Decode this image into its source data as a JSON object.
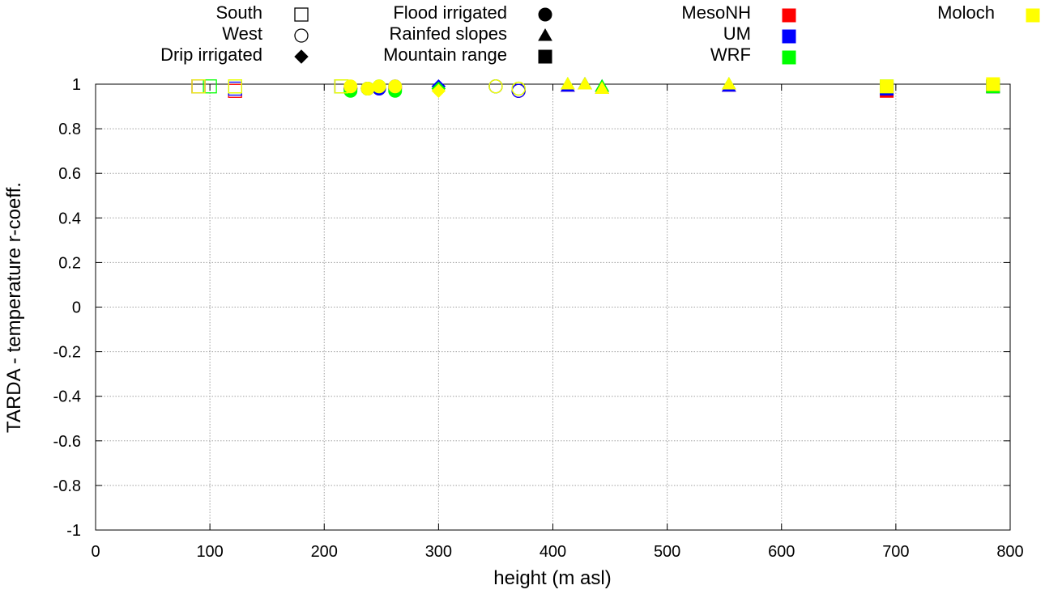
{
  "chart_data": {
    "type": "scatter",
    "title": "",
    "xlabel": "height (m asl)",
    "ylabel": "TARDA - temperature r-coeff.",
    "xlim": [
      0,
      800
    ],
    "ylim": [
      -1,
      1
    ],
    "xticks": [
      0,
      100,
      200,
      300,
      400,
      500,
      600,
      700,
      800
    ],
    "yticks": [
      1,
      0.8,
      0.6,
      0.4,
      0.2,
      0,
      -0.2,
      -0.4,
      -0.6,
      -0.8,
      -1
    ],
    "grid": true,
    "legend_shapes": [
      {
        "label": "South",
        "marker": "square-open"
      },
      {
        "label": "West",
        "marker": "circle-open"
      },
      {
        "label": "Drip irrigated",
        "marker": "diamond"
      },
      {
        "label": "Flood irrigated",
        "marker": "circle"
      },
      {
        "label": "Rainfed slopes",
        "marker": "triangle"
      },
      {
        "label": "Mountain range",
        "marker": "square"
      }
    ],
    "legend_models": [
      {
        "label": "MesoNH",
        "color": "#ff0000"
      },
      {
        "label": "UM",
        "color": "#0000ff"
      },
      {
        "label": "WRF",
        "color": "#00ff00"
      },
      {
        "label": "Moloch",
        "color": "#ffff00"
      }
    ],
    "series": [
      {
        "name": "MesoNH",
        "color": "#ff0000",
        "points": [
          {
            "x": 90,
            "y": 0.99,
            "marker": "square-open"
          },
          {
            "x": 122,
            "y": 0.97,
            "marker": "square-open"
          },
          {
            "x": 215,
            "y": 0.99,
            "marker": "square-open"
          },
          {
            "x": 223,
            "y": 0.98,
            "marker": "circle"
          },
          {
            "x": 238,
            "y": 0.98,
            "marker": "circle"
          },
          {
            "x": 248,
            "y": 0.98,
            "marker": "circle"
          },
          {
            "x": 262,
            "y": 0.98,
            "marker": "circle"
          },
          {
            "x": 300,
            "y": 0.98,
            "marker": "diamond"
          },
          {
            "x": 350,
            "y": 0.99,
            "marker": "circle-open"
          },
          {
            "x": 370,
            "y": 0.97,
            "marker": "circle-open"
          },
          {
            "x": 413,
            "y": 0.99,
            "marker": "triangle"
          },
          {
            "x": 428,
            "y": 1.0,
            "marker": "triangle"
          },
          {
            "x": 443,
            "y": 0.98,
            "marker": "triangle"
          },
          {
            "x": 554,
            "y": 0.99,
            "marker": "triangle"
          },
          {
            "x": 692,
            "y": 0.97,
            "marker": "square"
          },
          {
            "x": 785,
            "y": 0.99,
            "marker": "square"
          }
        ]
      },
      {
        "name": "UM",
        "color": "#0000ff",
        "points": [
          {
            "x": 90,
            "y": 0.99,
            "marker": "square-open"
          },
          {
            "x": 122,
            "y": 0.98,
            "marker": "square-open"
          },
          {
            "x": 215,
            "y": 0.99,
            "marker": "square-open"
          },
          {
            "x": 223,
            "y": 0.98,
            "marker": "circle"
          },
          {
            "x": 238,
            "y": 0.98,
            "marker": "circle"
          },
          {
            "x": 248,
            "y": 0.98,
            "marker": "circle"
          },
          {
            "x": 262,
            "y": 0.99,
            "marker": "circle"
          },
          {
            "x": 300,
            "y": 0.99,
            "marker": "diamond"
          },
          {
            "x": 350,
            "y": 0.99,
            "marker": "circle-open"
          },
          {
            "x": 370,
            "y": 0.97,
            "marker": "circle-open"
          },
          {
            "x": 413,
            "y": 0.99,
            "marker": "triangle"
          },
          {
            "x": 428,
            "y": 1.0,
            "marker": "triangle"
          },
          {
            "x": 443,
            "y": 0.99,
            "marker": "triangle"
          },
          {
            "x": 554,
            "y": 0.99,
            "marker": "triangle"
          },
          {
            "x": 692,
            "y": 0.98,
            "marker": "square"
          },
          {
            "x": 785,
            "y": 0.99,
            "marker": "square"
          }
        ]
      },
      {
        "name": "WRF",
        "color": "#00ff00",
        "points": [
          {
            "x": 100,
            "y": 0.99,
            "marker": "square-open"
          },
          {
            "x": 122,
            "y": 0.99,
            "marker": "square-open"
          },
          {
            "x": 215,
            "y": 0.99,
            "marker": "square-open"
          },
          {
            "x": 223,
            "y": 0.97,
            "marker": "circle"
          },
          {
            "x": 238,
            "y": 0.98,
            "marker": "circle"
          },
          {
            "x": 248,
            "y": 0.99,
            "marker": "circle"
          },
          {
            "x": 262,
            "y": 0.97,
            "marker": "circle"
          },
          {
            "x": 300,
            "y": 0.98,
            "marker": "diamond"
          },
          {
            "x": 350,
            "y": 0.99,
            "marker": "circle-open"
          },
          {
            "x": 370,
            "y": 0.98,
            "marker": "circle-open"
          },
          {
            "x": 413,
            "y": 1.0,
            "marker": "triangle"
          },
          {
            "x": 428,
            "y": 1.0,
            "marker": "triangle"
          },
          {
            "x": 443,
            "y": 0.99,
            "marker": "triangle"
          },
          {
            "x": 554,
            "y": 1.0,
            "marker": "triangle"
          },
          {
            "x": 692,
            "y": 0.99,
            "marker": "square"
          },
          {
            "x": 785,
            "y": 0.99,
            "marker": "square"
          }
        ]
      },
      {
        "name": "Moloch",
        "color": "#ffff00",
        "points": [
          {
            "x": 90,
            "y": 0.99,
            "marker": "square-open"
          },
          {
            "x": 122,
            "y": 0.99,
            "marker": "square-open"
          },
          {
            "x": 215,
            "y": 0.99,
            "marker": "square-open"
          },
          {
            "x": 223,
            "y": 0.99,
            "marker": "circle"
          },
          {
            "x": 238,
            "y": 0.98,
            "marker": "circle"
          },
          {
            "x": 248,
            "y": 0.99,
            "marker": "circle"
          },
          {
            "x": 262,
            "y": 0.99,
            "marker": "circle"
          },
          {
            "x": 300,
            "y": 0.97,
            "marker": "diamond"
          },
          {
            "x": 350,
            "y": 0.99,
            "marker": "circle-open"
          },
          {
            "x": 370,
            "y": 0.98,
            "marker": "circle-open"
          },
          {
            "x": 413,
            "y": 1.0,
            "marker": "triangle"
          },
          {
            "x": 428,
            "y": 1.0,
            "marker": "triangle"
          },
          {
            "x": 443,
            "y": 0.98,
            "marker": "triangle"
          },
          {
            "x": 554,
            "y": 1.0,
            "marker": "triangle"
          },
          {
            "x": 692,
            "y": 0.99,
            "marker": "square"
          },
          {
            "x": 785,
            "y": 1.0,
            "marker": "square"
          }
        ]
      }
    ]
  }
}
